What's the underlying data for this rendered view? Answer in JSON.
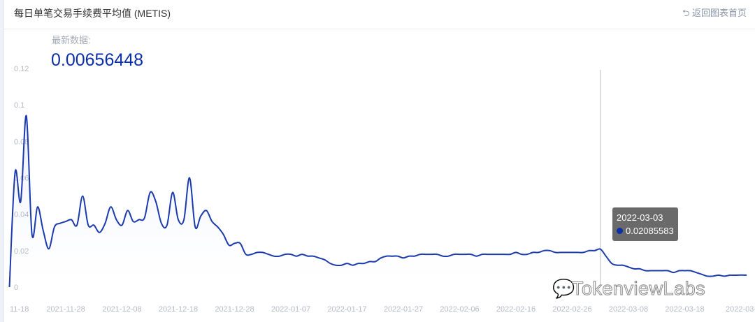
{
  "header": {
    "title": "每日单笔交易手续费平均值 (METIS)",
    "back_label": "返回图表首页",
    "back_icon": "return-arrow-icon"
  },
  "latest": {
    "label": "最新数据:",
    "value": "0.00656448"
  },
  "tooltip": {
    "date": "2022-03-03",
    "value": "0.02085583"
  },
  "watermark": "TokenviewLabs",
  "colors": {
    "line": "#1a3aad",
    "accent": "#0a2fa8",
    "fill": "#e8eefb"
  },
  "chart_data": {
    "type": "area",
    "title": "每日单笔交易手续费平均值 (METIS)",
    "ylim": [
      0,
      0.12
    ],
    "yticks": [
      "0",
      "0.02",
      "0.04",
      "0.06",
      "0.08",
      "0.1",
      "0.12"
    ],
    "xticks": [
      "11-18",
      "2021-11-28",
      "2021-12-08",
      "2021-12-18",
      "2021-12-28",
      "2022-01-07",
      "2022-01-17",
      "2022-01-27",
      "2022-02-06",
      "2022-02-16",
      "2022-02-26",
      "2022-03-08",
      "2022-03-18",
      "2022-03-"
    ],
    "grid": false,
    "x": [
      "2021-11-18",
      "2021-11-19",
      "2021-11-20",
      "2021-11-21",
      "2021-11-22",
      "2021-11-23",
      "2021-11-24",
      "2021-11-25",
      "2021-11-26",
      "2021-11-27",
      "2021-11-28",
      "2021-11-29",
      "2021-11-30",
      "2021-12-01",
      "2021-12-02",
      "2021-12-03",
      "2021-12-04",
      "2021-12-05",
      "2021-12-06",
      "2021-12-07",
      "2021-12-08",
      "2021-12-09",
      "2021-12-10",
      "2021-12-11",
      "2021-12-12",
      "2021-12-13",
      "2021-12-14",
      "2021-12-15",
      "2021-12-16",
      "2021-12-17",
      "2021-12-18",
      "2021-12-19",
      "2021-12-20",
      "2021-12-21",
      "2021-12-22",
      "2021-12-23",
      "2021-12-24",
      "2021-12-25",
      "2021-12-26",
      "2021-12-27",
      "2021-12-28",
      "2021-12-29",
      "2021-12-30",
      "2021-12-31",
      "2022-01-01",
      "2022-01-02",
      "2022-01-03",
      "2022-01-04",
      "2022-01-05",
      "2022-01-06",
      "2022-01-07",
      "2022-01-08",
      "2022-01-09",
      "2022-01-10",
      "2022-01-11",
      "2022-01-12",
      "2022-01-13",
      "2022-01-14",
      "2022-01-15",
      "2022-01-16",
      "2022-01-17",
      "2022-01-18",
      "2022-01-19",
      "2022-01-20",
      "2022-01-21",
      "2022-01-22",
      "2022-01-23",
      "2022-01-24",
      "2022-01-25",
      "2022-01-26",
      "2022-01-27",
      "2022-01-28",
      "2022-01-29",
      "2022-01-30",
      "2022-01-31",
      "2022-02-01",
      "2022-02-02",
      "2022-02-03",
      "2022-02-04",
      "2022-02-05",
      "2022-02-06",
      "2022-02-07",
      "2022-02-08",
      "2022-02-09",
      "2022-02-10",
      "2022-02-11",
      "2022-02-12",
      "2022-02-13",
      "2022-02-14",
      "2022-02-15",
      "2022-02-16",
      "2022-02-17",
      "2022-02-18",
      "2022-02-19",
      "2022-02-20",
      "2022-02-21",
      "2022-02-22",
      "2022-02-23",
      "2022-02-24",
      "2022-02-25",
      "2022-02-26",
      "2022-02-27",
      "2022-02-28",
      "2022-03-01",
      "2022-03-02",
      "2022-03-03",
      "2022-03-04",
      "2022-03-05",
      "2022-03-06",
      "2022-03-07",
      "2022-03-08",
      "2022-03-09",
      "2022-03-10",
      "2022-03-11",
      "2022-03-12",
      "2022-03-13",
      "2022-03-14",
      "2022-03-15",
      "2022-03-16",
      "2022-03-17",
      "2022-03-18",
      "2022-03-19",
      "2022-03-20",
      "2022-03-21",
      "2022-03-22",
      "2022-03-23",
      "2022-03-24",
      "2022-03-25",
      "2022-03-26",
      "2022-03-27",
      "2022-03-28",
      "2022-03-29"
    ],
    "values": [
      0,
      0.063,
      0.047,
      0.094,
      0.029,
      0.044,
      0.031,
      0.021,
      0.033,
      0.035,
      0.036,
      0.037,
      0.034,
      0.05,
      0.034,
      0.034,
      0.03,
      0.035,
      0.044,
      0.037,
      0.034,
      0.042,
      0.036,
      0.037,
      0.038,
      0.052,
      0.047,
      0.035,
      0.034,
      0.052,
      0.037,
      0.037,
      0.06,
      0.033,
      0.039,
      0.042,
      0.036,
      0.033,
      0.029,
      0.023,
      0.024,
      0.024,
      0.018,
      0.018,
      0.019,
      0.019,
      0.018,
      0.017,
      0.017,
      0.018,
      0.018,
      0.017,
      0.018,
      0.017,
      0.017,
      0.016,
      0.015,
      0.013,
      0.012,
      0.012,
      0.013,
      0.012,
      0.013,
      0.013,
      0.014,
      0.014,
      0.016,
      0.017,
      0.017,
      0.017,
      0.016,
      0.017,
      0.017,
      0.018,
      0.018,
      0.018,
      0.018,
      0.017,
      0.017,
      0.018,
      0.018,
      0.018,
      0.018,
      0.017,
      0.018,
      0.018,
      0.018,
      0.018,
      0.018,
      0.018,
      0.019,
      0.018,
      0.018,
      0.019,
      0.019,
      0.02,
      0.02,
      0.019,
      0.019,
      0.019,
      0.019,
      0.019,
      0.019,
      0.02,
      0.02,
      0.02085583,
      0.017,
      0.013,
      0.012,
      0.012,
      0.011,
      0.01,
      0.01,
      0.009,
      0.009,
      0.009,
      0.009,
      0.009,
      0.008,
      0.009,
      0.009,
      0.009,
      0.008,
      0.007,
      0.006,
      0.006,
      0.0065,
      0.006,
      0.0065,
      0.0065,
      0.0066,
      0.00656448
    ],
    "highlight_date": "2022-03-03"
  }
}
